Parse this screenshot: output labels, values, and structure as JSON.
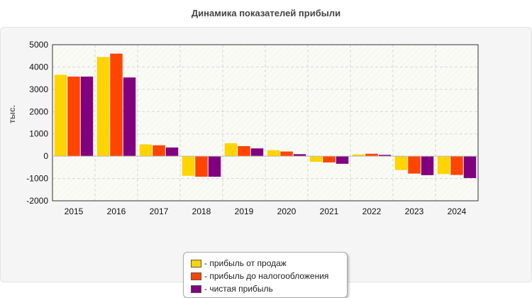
{
  "colors": {
    "sales_profit": "#ffd400",
    "pretax_profit": "#ff4500",
    "net_profit": "#800080"
  },
  "legend": {
    "items": [
      {
        "label": "- прибыль от продаж",
        "color": "#ffd400"
      },
      {
        "label": "- прибыль до налогообложения",
        "color": "#ff4500"
      },
      {
        "label": "- чистая прибыль",
        "color": "#800080"
      }
    ]
  },
  "chart_data": {
    "type": "bar",
    "title": "Динамика показателей прибыли",
    "ylabel": "тыс.",
    "xlabel": "",
    "ylim": [
      -2000,
      5000
    ],
    "yticks": [
      -2000,
      -1000,
      0,
      1000,
      2000,
      3000,
      4000,
      5000
    ],
    "categories": [
      "2015",
      "2016",
      "2017",
      "2018",
      "2019",
      "2020",
      "2021",
      "2022",
      "2023",
      "2024"
    ],
    "series": [
      {
        "name": "прибыль от продаж",
        "color": "#ffd400",
        "values": [
          3650,
          4450,
          530,
          -880,
          580,
          270,
          -250,
          80,
          -620,
          -800
        ]
      },
      {
        "name": "прибыль до налогообложения",
        "color": "#ff4500",
        "values": [
          3570,
          4600,
          490,
          -920,
          450,
          210,
          -280,
          110,
          -780,
          -840
        ]
      },
      {
        "name": "чистая прибыль",
        "color": "#800080",
        "values": [
          3570,
          3530,
          390,
          -920,
          350,
          90,
          -340,
          60,
          -850,
          -980
        ]
      }
    ],
    "grid": true,
    "legend_position": "bottom-center"
  }
}
